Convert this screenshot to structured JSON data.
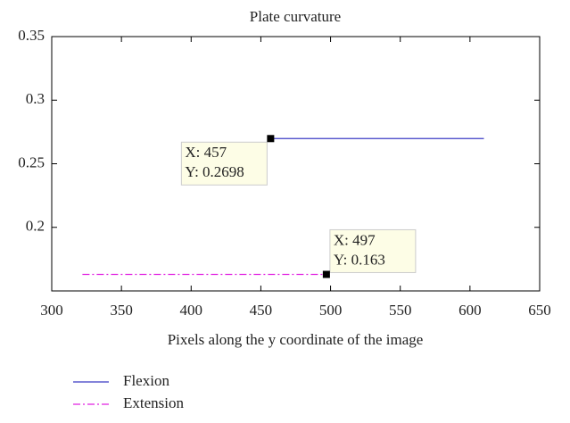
{
  "chart_data": {
    "type": "line",
    "title": "Plate curvature",
    "x_label": "Pixels along the y coordinate of the image",
    "xlim": [
      300,
      650
    ],
    "xticks": [
      300,
      350,
      400,
      450,
      500,
      550,
      600,
      650
    ],
    "ylim": [
      0.15,
      0.35
    ],
    "yticks": [
      0.2,
      0.25,
      0.3,
      0.35
    ],
    "legend": "bottom-left",
    "series": [
      {
        "name": "Flexion",
        "color": "#3b3bc4",
        "dash": "solid",
        "x": [
          457,
          610
        ],
        "values": [
          0.2698,
          0.2698
        ]
      },
      {
        "name": "Extension",
        "color": "#e020e0",
        "dash": "dash-dot",
        "x": [
          322,
          497
        ],
        "values": [
          0.163,
          0.163
        ]
      }
    ],
    "annotations": [
      {
        "series": 0,
        "point": 0,
        "x_text": "X: 457",
        "y_text": "Y: 0.2698",
        "side": "below-left"
      },
      {
        "series": 1,
        "point": 1,
        "x_text": "X: 497",
        "y_text": "Y: 0.163",
        "side": "above-right"
      }
    ]
  }
}
